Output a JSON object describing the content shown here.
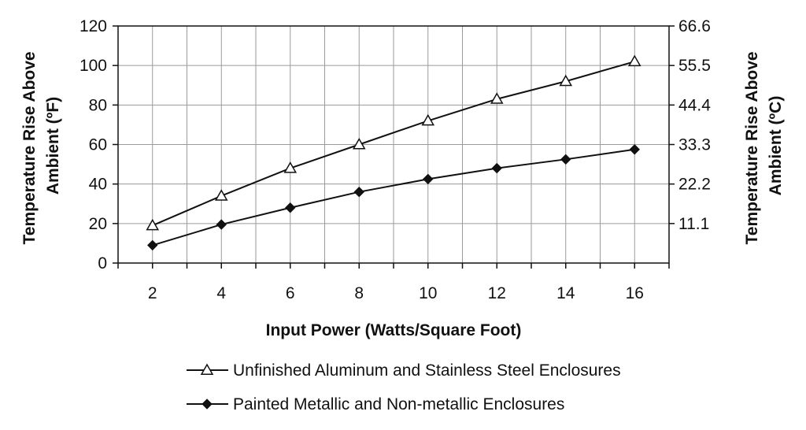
{
  "chart_data": {
    "type": "line",
    "title": "",
    "xlabel": "Input Power (Watts/Square Foot)",
    "ylabel": "Temperature Rise Above Ambient (ºF)",
    "ylabel_lines": [
      "Temperature Rise Above",
      "Ambient (ºF)"
    ],
    "y2label": "Temperature Rise Above Ambient (ºC)",
    "y2label_lines": [
      "Temperature Rise Above",
      "Ambient (ºC)"
    ],
    "x": [
      2,
      4,
      6,
      8,
      10,
      12,
      14,
      16
    ],
    "xlim": [
      1,
      17
    ],
    "x_ticks": [
      "2",
      "4",
      "6",
      "8",
      "10",
      "12",
      "14",
      "16"
    ],
    "ylim": [
      0,
      120
    ],
    "y_ticks": [
      "0",
      "20",
      "40",
      "60",
      "80",
      "100",
      "120"
    ],
    "y2_ticks": [
      "11.1",
      "22.2",
      "33.3",
      "44.4",
      "55.5",
      "66.6"
    ],
    "grid": true,
    "legend_position": "bottom",
    "series": [
      {
        "name": "Unfinished Aluminum and Stainless Steel Enclosures",
        "marker": "triangle-open",
        "values": [
          19,
          34,
          48,
          60,
          72,
          83,
          92,
          102
        ]
      },
      {
        "name": "Painted Metallic and Non-metallic Enclosures",
        "marker": "diamond-filled",
        "values": [
          9,
          19.5,
          28,
          36,
          42.5,
          48,
          52.5,
          57.5
        ]
      }
    ]
  }
}
